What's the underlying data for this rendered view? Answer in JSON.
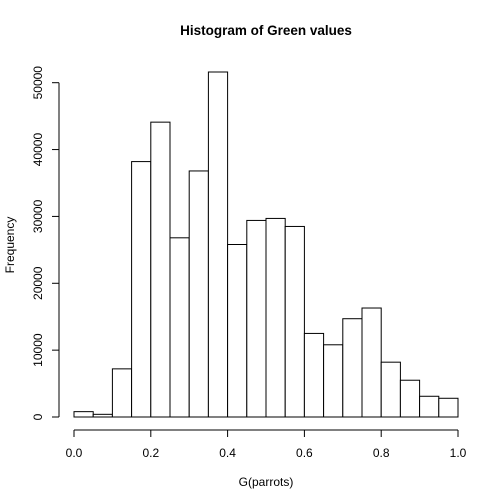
{
  "chart_data": {
    "type": "bar",
    "title": "Histogram of Green values",
    "xlabel": "G(parrots)",
    "ylabel": "Frequency",
    "bin_edges": [
      0.0,
      0.05,
      0.1,
      0.15,
      0.2,
      0.25,
      0.3,
      0.35,
      0.4,
      0.45,
      0.5,
      0.55,
      0.6,
      0.65,
      0.7,
      0.75,
      0.8,
      0.85,
      0.9,
      0.95,
      1.0
    ],
    "values": [
      800,
      400,
      7200,
      38200,
      44100,
      26800,
      36800,
      51600,
      25800,
      29400,
      29700,
      28500,
      12500,
      10800,
      14700,
      16300,
      8200,
      5500,
      3100,
      2800
    ],
    "xlim": [
      0.0,
      1.0
    ],
    "ylim": [
      0,
      51600
    ],
    "x_ticks": [
      0.0,
      0.2,
      0.4,
      0.6,
      0.8,
      1.0
    ],
    "x_tick_labels": [
      "0.0",
      "0.2",
      "0.4",
      "0.6",
      "0.8",
      "1.0"
    ],
    "y_ticks": [
      0,
      10000,
      20000,
      30000,
      40000,
      50000
    ],
    "y_tick_labels": [
      "0",
      "10000",
      "20000",
      "30000",
      "40000",
      "50000"
    ],
    "grid": false,
    "legend": "none",
    "colors": {
      "bar_fill": "#ffffff",
      "bar_stroke": "#000000"
    }
  }
}
